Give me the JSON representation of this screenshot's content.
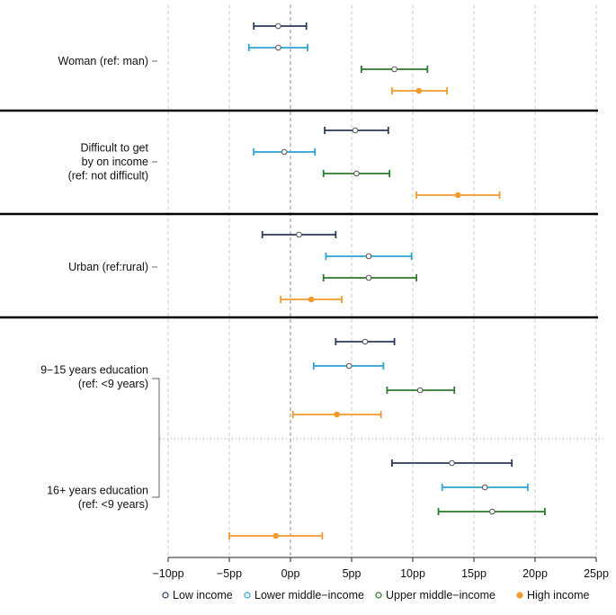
{
  "chart_data": {
    "type": "errorbar",
    "title": "",
    "xlabel": "",
    "xlim": [
      -10,
      25
    ],
    "tick_values": [
      -10,
      -5,
      0,
      5,
      10,
      15,
      20,
      25
    ],
    "tick_labels": [
      "−10pp",
      "−5pp",
      "0pp",
      "5pp",
      "10pp",
      "15pp",
      "20pp",
      "25pp"
    ],
    "groups": [
      {
        "label_lines": [
          "Woman (ref: man)"
        ]
      },
      {
        "label_lines": [
          "Difficult to get",
          "by on income",
          "(ref: not difficult)"
        ]
      },
      {
        "label_lines": [
          "Urban (ref:rural)"
        ]
      },
      {
        "label_lines": [
          "9−15 years education",
          "(ref: <9 years)"
        ]
      },
      {
        "label_lines": [
          "16+ years education",
          "(ref: <9 years)"
        ]
      }
    ],
    "series": [
      {
        "name": "Low income",
        "color": "#2b3a5c",
        "points": [
          {
            "estimate": -1.0,
            "low": -3.0,
            "high": 1.3
          },
          {
            "estimate": 5.3,
            "low": 2.8,
            "high": 8.0
          },
          {
            "estimate": 0.7,
            "low": -2.3,
            "high": 3.7
          },
          {
            "estimate": 6.1,
            "low": 3.7,
            "high": 8.5
          },
          {
            "estimate": 13.2,
            "low": 8.3,
            "high": 18.1
          }
        ]
      },
      {
        "name": "Lower middle−income",
        "color": "#2aa5d4",
        "points": [
          {
            "estimate": -1.0,
            "low": -3.4,
            "high": 1.4
          },
          {
            "estimate": -0.5,
            "low": -3.0,
            "high": 2.0
          },
          {
            "estimate": 6.4,
            "low": 2.9,
            "high": 9.9
          },
          {
            "estimate": 4.8,
            "low": 1.9,
            "high": 7.6
          },
          {
            "estimate": 15.9,
            "low": 12.4,
            "high": 19.4
          }
        ]
      },
      {
        "name": "Upper middle−income",
        "color": "#2c7a2c",
        "points": [
          {
            "estimate": 8.5,
            "low": 5.8,
            "high": 11.2
          },
          {
            "estimate": 5.4,
            "low": 2.7,
            "high": 8.1
          },
          {
            "estimate": 6.4,
            "low": 2.7,
            "high": 10.3
          },
          {
            "estimate": 10.6,
            "low": 7.9,
            "high": 13.4
          },
          {
            "estimate": 16.5,
            "low": 12.1,
            "high": 20.8
          }
        ]
      },
      {
        "name": "High income",
        "color": "#f39a2e",
        "points": [
          {
            "estimate": 10.5,
            "low": 8.3,
            "high": 12.8
          },
          {
            "estimate": 13.7,
            "low": 10.3,
            "high": 17.1
          },
          {
            "estimate": 1.7,
            "low": -0.8,
            "high": 4.2
          },
          {
            "estimate": 3.8,
            "low": 0.2,
            "high": 7.4
          },
          {
            "estimate": -1.2,
            "low": -5.0,
            "high": 2.6
          }
        ]
      }
    ],
    "legend": {
      "position": "bottom",
      "items": [
        "Low income",
        "Lower middle−income",
        "Upper middle−income",
        "High income"
      ]
    }
  }
}
